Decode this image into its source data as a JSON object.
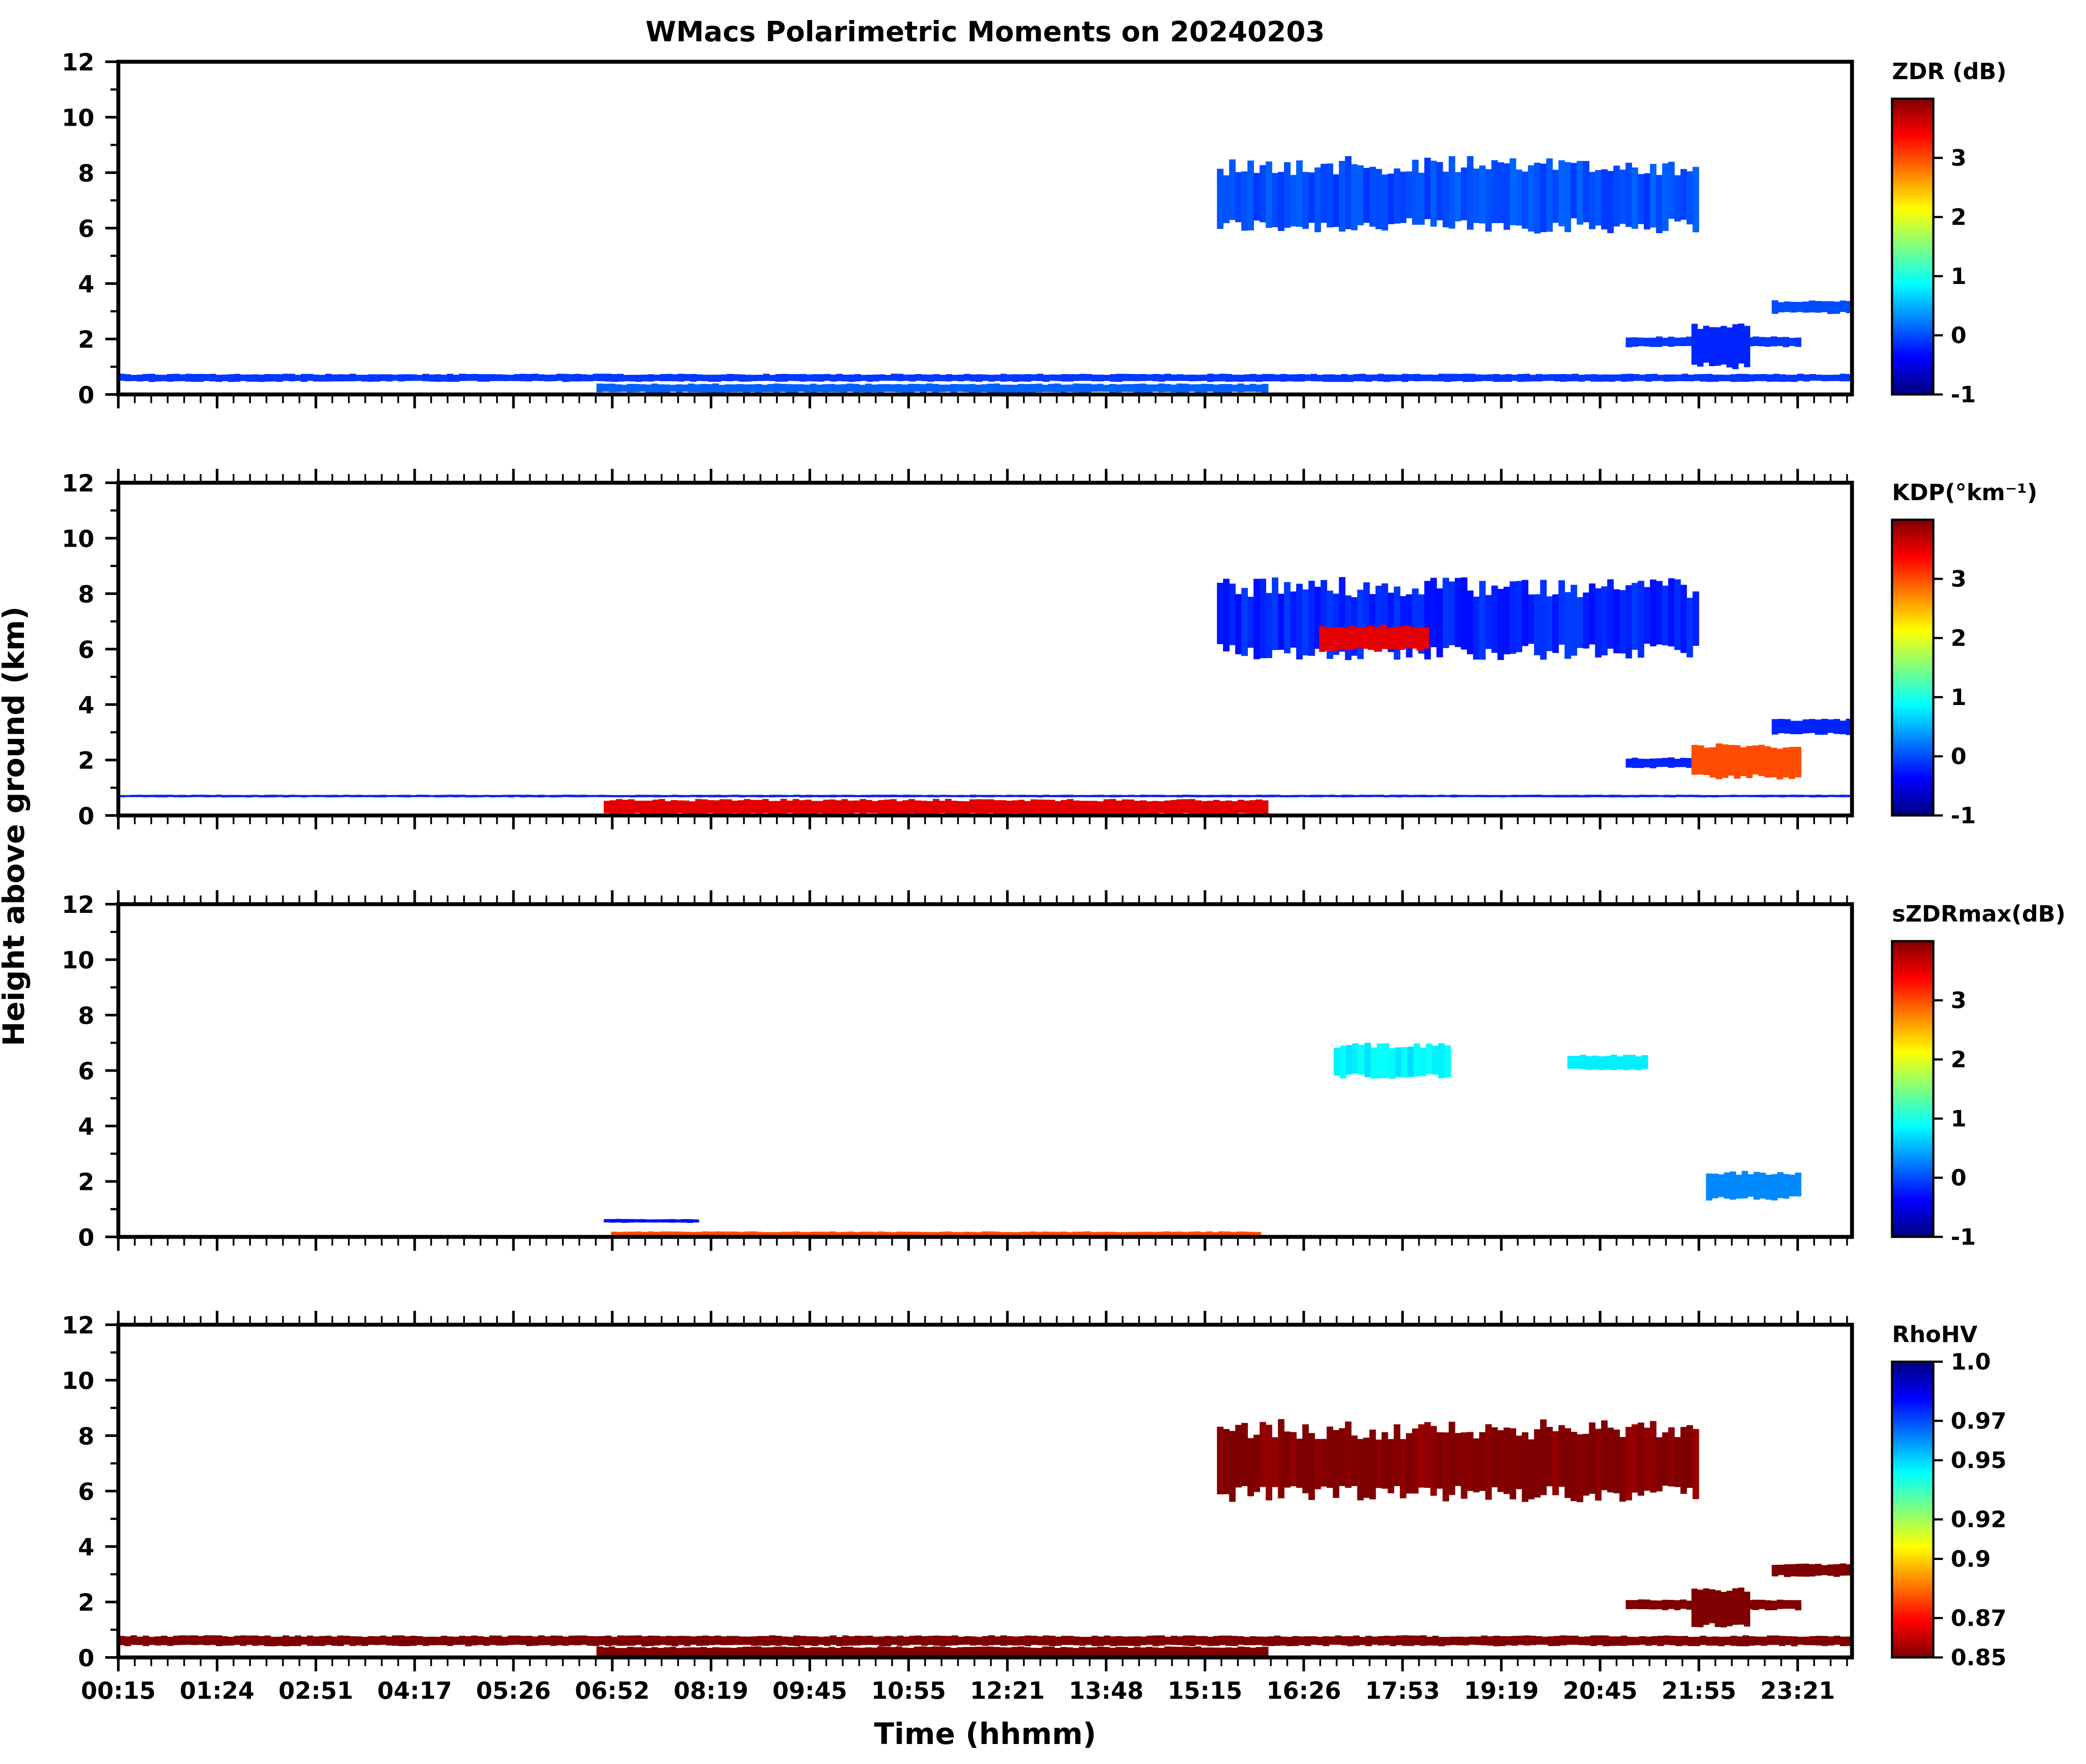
{
  "figure": {
    "title": "WMacs Polarimetric Moments on 20240203",
    "xlabel": "Time (hhmm)",
    "ylabel": "Height above ground (km)"
  },
  "colors": {
    "jet": [
      "#00007f",
      "#0000ff",
      "#007fff",
      "#00ffff",
      "#7fff7f",
      "#ffff00",
      "#ff7f00",
      "#ff0000",
      "#7f0000"
    ],
    "frame": "#000000",
    "background": "#ffffff"
  },
  "chart_data": [
    {
      "type": "heatmap",
      "panel": "zdr",
      "colorbar_label": "ZDR (dB)",
      "colorbar_ticks": [
        "-1",
        "0",
        "1",
        "2",
        "3"
      ],
      "colorbar_range": [
        -1,
        4
      ],
      "colormap": "jet",
      "ylim": [
        0,
        12
      ],
      "yticks": [
        "0",
        "2",
        "4",
        "6",
        "8",
        "10",
        "12"
      ],
      "xticks": [],
      "regions": [
        {
          "t": [
            15.3,
            21.9
          ],
          "h": [
            5.8,
            8.6
          ],
          "value": 0.0
        },
        {
          "t": [
            20.9,
            23.3
          ],
          "h": [
            1.7,
            2.1
          ],
          "value": -0.1
        },
        {
          "t": [
            21.8,
            22.6
          ],
          "h": [
            0.9,
            2.6
          ],
          "value": -0.2
        },
        {
          "t": [
            22.9,
            24.0
          ],
          "h": [
            2.9,
            3.4
          ],
          "value": 0.0
        },
        {
          "t": [
            0.0,
            24.0
          ],
          "h": [
            0.45,
            0.75
          ],
          "value": -0.1
        },
        {
          "t": [
            6.8,
            16.0
          ],
          "h": [
            0.05,
            0.4
          ],
          "value": 0.1
        }
      ]
    },
    {
      "type": "heatmap",
      "panel": "kdp",
      "colorbar_label": "KDP(°km⁻¹)",
      "colorbar_ticks": [
        "-1",
        "0",
        "1",
        "2",
        "3"
      ],
      "colorbar_range": [
        -1,
        4
      ],
      "colormap": "jet",
      "ylim": [
        0,
        12
      ],
      "yticks": [
        "0",
        "2",
        "4",
        "6",
        "8",
        "10",
        "12"
      ],
      "xticks": [],
      "regions": [
        {
          "t": [
            15.3,
            21.9
          ],
          "h": [
            5.6,
            8.6
          ],
          "value": -0.2
        },
        {
          "t": [
            16.7,
            18.2
          ],
          "h": [
            5.9,
            6.9
          ],
          "value": 3.5
        },
        {
          "t": [
            20.9,
            23.3
          ],
          "h": [
            1.7,
            2.1
          ],
          "value": -0.2
        },
        {
          "t": [
            21.8,
            23.3
          ],
          "h": [
            1.3,
            2.6
          ],
          "value": 3.0
        },
        {
          "t": [
            22.9,
            24.0
          ],
          "h": [
            2.9,
            3.5
          ],
          "value": -0.2
        },
        {
          "t": [
            0.0,
            24.0
          ],
          "h": [
            0.65,
            0.75
          ],
          "value": -0.2
        },
        {
          "t": [
            6.9,
            16.0
          ],
          "h": [
            0.0,
            0.6
          ],
          "value": 3.5
        }
      ]
    },
    {
      "type": "heatmap",
      "panel": "szdrmax",
      "colorbar_label": "sZDRmax(dB)",
      "colorbar_ticks": [
        "-1",
        "0",
        "1",
        "2",
        "3"
      ],
      "colorbar_range": [
        -1,
        4
      ],
      "colormap": "jet",
      "ylim": [
        0,
        12
      ],
      "yticks": [
        "0",
        "2",
        "4",
        "6",
        "8",
        "10",
        "12"
      ],
      "xticks": [],
      "regions": [
        {
          "t": [
            16.9,
            18.5
          ],
          "h": [
            5.7,
            7.0
          ],
          "value": 0.8
        },
        {
          "t": [
            20.1,
            21.2
          ],
          "h": [
            6.0,
            6.6
          ],
          "value": 0.8
        },
        {
          "t": [
            22.0,
            23.3
          ],
          "h": [
            1.3,
            2.4
          ],
          "value": 0.3
        },
        {
          "t": [
            6.9,
            8.2
          ],
          "h": [
            0.5,
            0.65
          ],
          "value": -0.3
        },
        {
          "t": [
            7.0,
            15.9
          ],
          "h": [
            0.0,
            0.2
          ],
          "value": 3.0
        }
      ]
    },
    {
      "type": "heatmap",
      "panel": "rhohv",
      "colorbar_label": "RhoHV",
      "colorbar_ticks": [
        "0.85",
        "0.87",
        "0.9",
        "0.92",
        "0.95",
        "0.97",
        "1.0"
      ],
      "colorbar_range": [
        0.85,
        1.0
      ],
      "colormap": "jet_r",
      "ylim": [
        0,
        12
      ],
      "yticks": [
        "0",
        "2",
        "4",
        "6",
        "8",
        "10",
        "12"
      ],
      "xticks": [
        "00:15",
        "01:24",
        "02:51",
        "04:17",
        "05:26",
        "06:52",
        "08:19",
        "09:45",
        "10:55",
        "12:21",
        "13:48",
        "15:15",
        "16:26",
        "17:53",
        "19:19",
        "20:45",
        "21:55",
        "23:21"
      ],
      "regions": [
        {
          "t": [
            15.3,
            21.9
          ],
          "h": [
            5.6,
            8.6
          ],
          "value": 0.85
        },
        {
          "t": [
            20.9,
            23.3
          ],
          "h": [
            1.7,
            2.1
          ],
          "value": 0.85
        },
        {
          "t": [
            21.8,
            22.6
          ],
          "h": [
            1.0,
            2.6
          ],
          "value": 0.85
        },
        {
          "t": [
            22.9,
            24.0
          ],
          "h": [
            2.9,
            3.4
          ],
          "value": 0.85
        },
        {
          "t": [
            0.0,
            24.0
          ],
          "h": [
            0.4,
            0.8
          ],
          "value": 0.85
        },
        {
          "t": [
            6.8,
            16.0
          ],
          "h": [
            0.0,
            0.4
          ],
          "value": 0.85
        }
      ]
    }
  ]
}
